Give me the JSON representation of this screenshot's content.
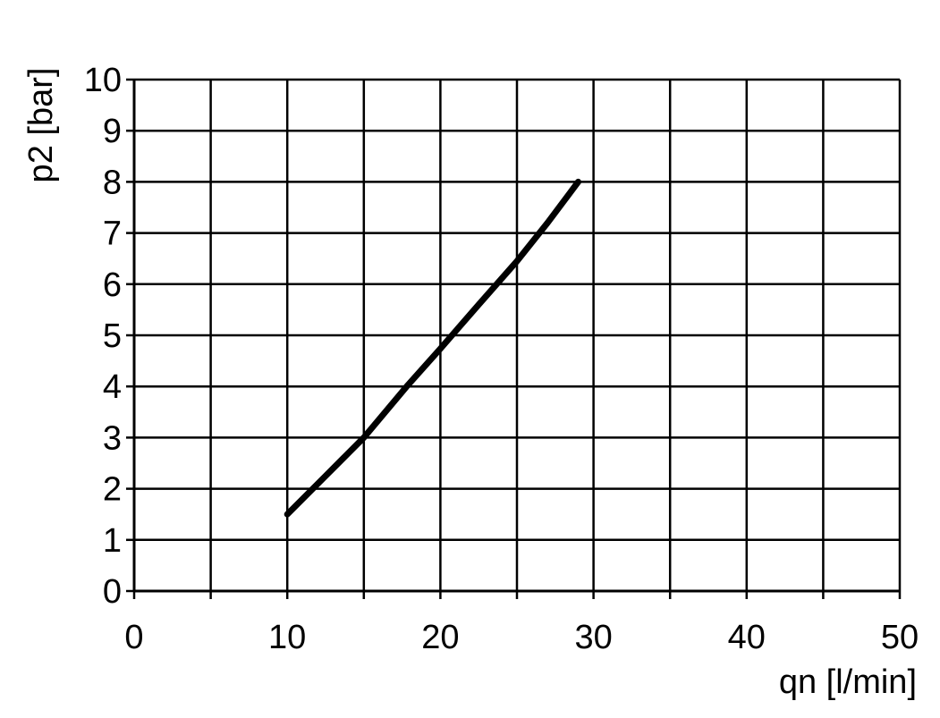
{
  "chart_data": {
    "type": "line",
    "title": "",
    "xlabel": "qn [l/min]",
    "ylabel": "p2 [bar]",
    "xlim": [
      0,
      50
    ],
    "ylim": [
      0,
      10
    ],
    "xticks": [
      0,
      10,
      20,
      30,
      40,
      50
    ],
    "xgrid_step": 5,
    "yticks": [
      0,
      1,
      2,
      3,
      4,
      5,
      6,
      7,
      8,
      9,
      10
    ],
    "grid": true,
    "line_color": "#000000",
    "series": [
      {
        "x": [
          10,
          12.5,
          15,
          17.8,
          20,
          22.5,
          25,
          27,
          29
        ],
        "y": [
          1.5,
          2.25,
          3.0,
          4.0,
          4.74,
          5.6,
          6.45,
          7.2,
          8.0
        ]
      }
    ]
  }
}
